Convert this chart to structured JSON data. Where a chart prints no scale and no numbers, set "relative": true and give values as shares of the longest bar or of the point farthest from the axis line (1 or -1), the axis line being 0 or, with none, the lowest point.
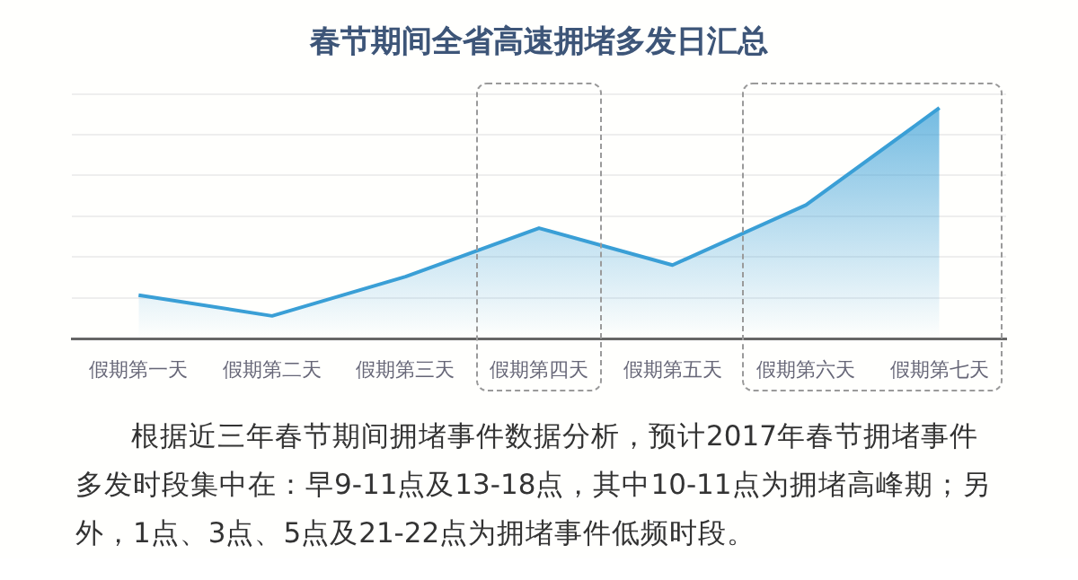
{
  "chart_data": {
    "type": "area",
    "title": "春节期间全省高速拥堵多发日汇总",
    "categories": [
      "假期第一天",
      "假期第二天",
      "假期第三天",
      "假期第四天",
      "假期第五天",
      "假期第六天",
      "假期第七天"
    ],
    "values": [
      0.19,
      0.1,
      0.27,
      0.48,
      0.32,
      0.58,
      1
    ],
    "color": "#3a9fd6",
    "relative": true,
    "grid": "y",
    "marker": "none",
    "legend": false,
    "annotations": [
      "根据近三年春节期间拥堵事件数据分析，预计2017年春节拥堵事件多发时段集中在：早9-11点及13-18点，其中10-11点为拥堵高峰期；另外，1点、3点、5点及21-22点为拥堵事件低频时段。"
    ]
  }
}
